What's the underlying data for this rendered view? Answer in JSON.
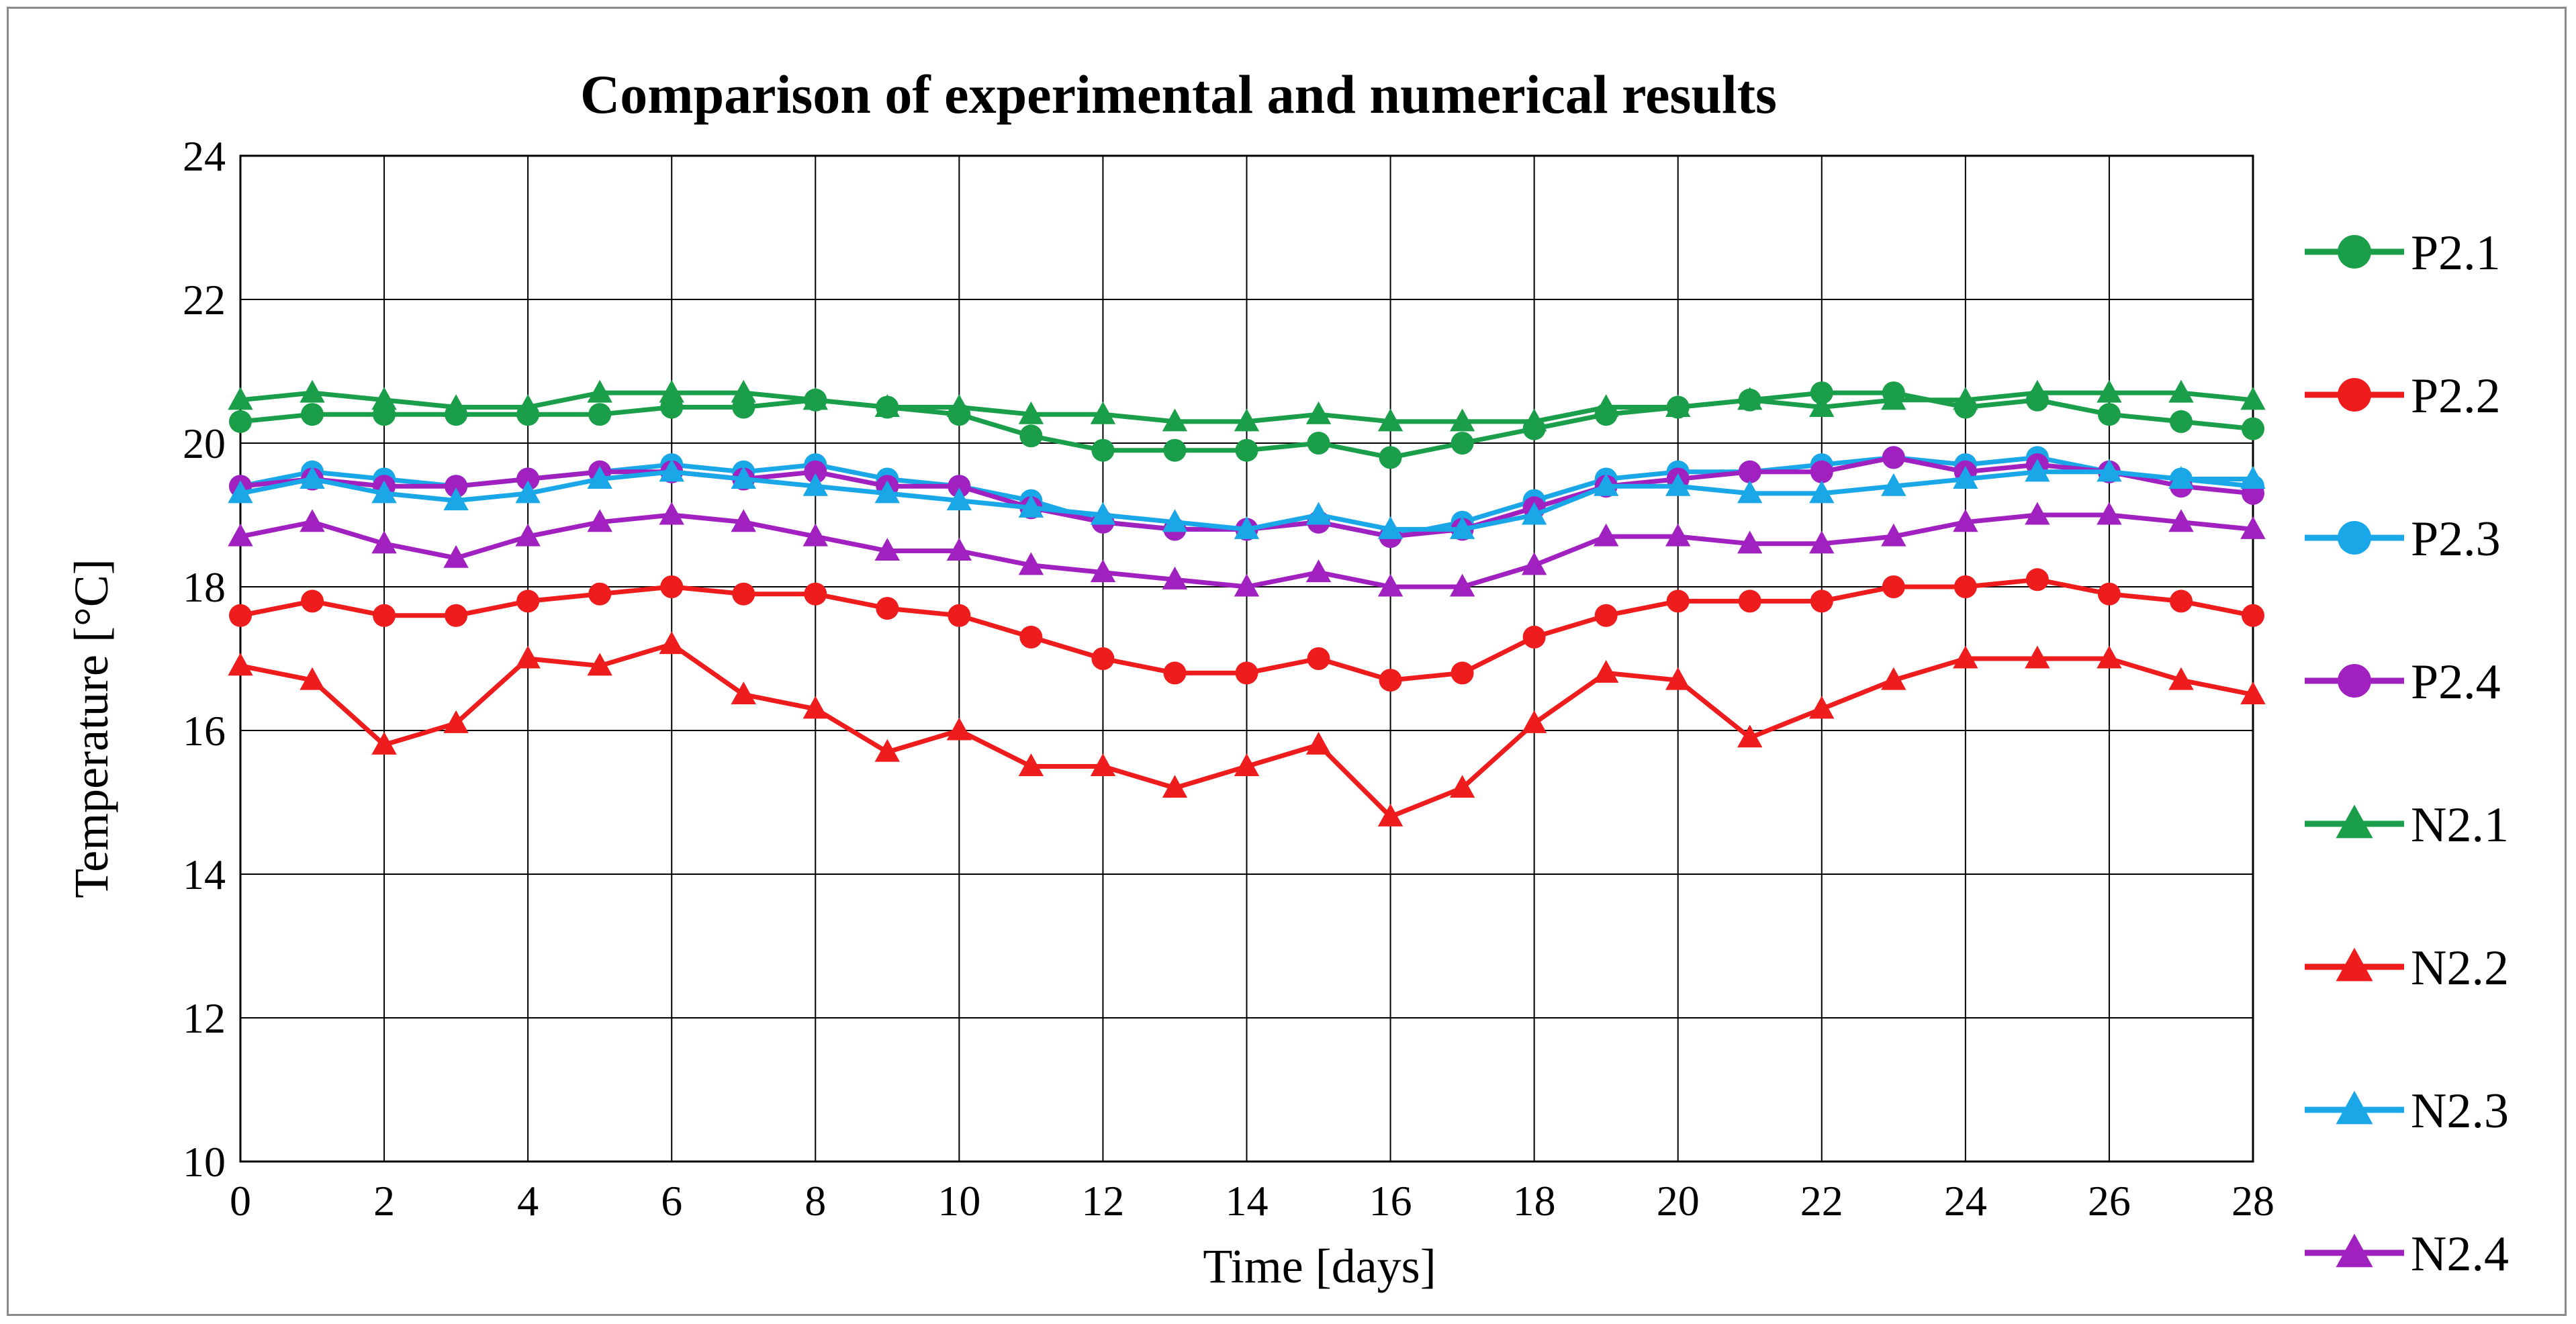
{
  "chart_data": {
    "type": "line",
    "title": "Comparison of experimental and numerical results",
    "xlabel": "Time [days]",
    "ylabel": "Temperature [°C]",
    "xlim": [
      0,
      28
    ],
    "ylim": [
      10,
      24
    ],
    "xticks": [
      0,
      2,
      4,
      6,
      8,
      10,
      12,
      14,
      16,
      18,
      20,
      22,
      24,
      26,
      28
    ],
    "yticks": [
      10,
      12,
      14,
      16,
      18,
      20,
      22,
      24
    ],
    "grid": true,
    "legend_position": "right",
    "series": [
      {
        "name": "P2.1",
        "color": "#1a9e4a",
        "marker": "circle",
        "x": [
          0,
          1,
          2,
          3,
          4,
          5,
          6,
          7,
          8,
          9,
          10,
          11,
          12,
          13,
          14,
          15,
          16,
          17,
          18,
          19,
          20,
          21,
          22,
          23,
          24,
          25,
          26,
          27,
          28
        ],
        "y": [
          20.3,
          20.4,
          20.4,
          20.4,
          20.4,
          20.4,
          20.5,
          20.5,
          20.6,
          20.5,
          20.4,
          20.1,
          19.9,
          19.9,
          19.9,
          20.0,
          19.8,
          20.0,
          20.2,
          20.4,
          20.5,
          20.6,
          20.7,
          20.7,
          20.5,
          20.6,
          20.4,
          20.3,
          20.2
        ]
      },
      {
        "name": "P2.2",
        "color": "#ee1c1c",
        "marker": "circle",
        "x": [
          0,
          1,
          2,
          3,
          4,
          5,
          6,
          7,
          8,
          9,
          10,
          11,
          12,
          13,
          14,
          15,
          16,
          17,
          18,
          19,
          20,
          21,
          22,
          23,
          24,
          25,
          26,
          27,
          28
        ],
        "y": [
          17.6,
          17.8,
          17.6,
          17.6,
          17.8,
          17.9,
          18.0,
          17.9,
          17.9,
          17.7,
          17.6,
          17.3,
          17.0,
          16.8,
          16.8,
          17.0,
          16.7,
          16.8,
          17.3,
          17.6,
          17.8,
          17.8,
          17.8,
          18.0,
          18.0,
          18.1,
          17.9,
          17.8,
          17.6
        ]
      },
      {
        "name": "P2.3",
        "color": "#1aa7e8",
        "marker": "circle",
        "x": [
          0,
          1,
          2,
          3,
          4,
          5,
          6,
          7,
          8,
          9,
          10,
          11,
          12,
          13,
          14,
          15,
          16,
          17,
          18,
          19,
          20,
          21,
          22,
          23,
          24,
          25,
          26,
          27,
          28
        ],
        "y": [
          19.4,
          19.6,
          19.5,
          19.4,
          19.5,
          19.6,
          19.7,
          19.6,
          19.7,
          19.5,
          19.4,
          19.2,
          18.9,
          18.8,
          18.8,
          18.9,
          18.7,
          18.9,
          19.2,
          19.5,
          19.6,
          19.6,
          19.7,
          19.8,
          19.7,
          19.8,
          19.6,
          19.5,
          19.4
        ]
      },
      {
        "name": "P2.4",
        "color": "#a020c0",
        "marker": "circle",
        "x": [
          0,
          1,
          2,
          3,
          4,
          5,
          6,
          7,
          8,
          9,
          10,
          11,
          12,
          13,
          14,
          15,
          16,
          17,
          18,
          19,
          20,
          21,
          22,
          23,
          24,
          25,
          26,
          27,
          28
        ],
        "y": [
          19.4,
          19.5,
          19.4,
          19.4,
          19.5,
          19.6,
          19.6,
          19.5,
          19.6,
          19.4,
          19.4,
          19.1,
          18.9,
          18.8,
          18.8,
          18.9,
          18.7,
          18.8,
          19.1,
          19.4,
          19.5,
          19.6,
          19.6,
          19.8,
          19.6,
          19.7,
          19.6,
          19.4,
          19.3
        ]
      },
      {
        "name": "N2.1",
        "color": "#1a9e4a",
        "marker": "triangle",
        "x": [
          0,
          1,
          2,
          3,
          4,
          5,
          6,
          7,
          8,
          9,
          10,
          11,
          12,
          13,
          14,
          15,
          16,
          17,
          18,
          19,
          20,
          21,
          22,
          23,
          24,
          25,
          26,
          27,
          28
        ],
        "y": [
          20.6,
          20.7,
          20.6,
          20.5,
          20.5,
          20.7,
          20.7,
          20.7,
          20.6,
          20.5,
          20.5,
          20.4,
          20.4,
          20.3,
          20.3,
          20.4,
          20.3,
          20.3,
          20.3,
          20.5,
          20.5,
          20.6,
          20.5,
          20.6,
          20.6,
          20.7,
          20.7,
          20.7,
          20.6
        ]
      },
      {
        "name": "N2.2",
        "color": "#ee1c1c",
        "marker": "triangle",
        "x": [
          0,
          1,
          2,
          3,
          4,
          5,
          6,
          7,
          8,
          9,
          10,
          11,
          12,
          13,
          14,
          15,
          16,
          17,
          18,
          19,
          20,
          21,
          22,
          23,
          24,
          25,
          26,
          27,
          28
        ],
        "y": [
          16.9,
          16.7,
          15.8,
          16.1,
          17.0,
          16.9,
          17.2,
          16.5,
          16.3,
          15.7,
          16.0,
          15.5,
          15.5,
          15.2,
          15.5,
          15.8,
          14.8,
          15.2,
          16.1,
          16.8,
          16.7,
          15.9,
          16.3,
          16.7,
          17.0,
          17.0,
          17.0,
          16.7,
          16.5
        ]
      },
      {
        "name": "N2.3",
        "color": "#1aa7e8",
        "marker": "triangle",
        "x": [
          0,
          1,
          2,
          3,
          4,
          5,
          6,
          7,
          8,
          9,
          10,
          11,
          12,
          13,
          14,
          15,
          16,
          17,
          18,
          19,
          20,
          21,
          22,
          23,
          24,
          25,
          26,
          27,
          28
        ],
        "y": [
          19.3,
          19.5,
          19.3,
          19.2,
          19.3,
          19.5,
          19.6,
          19.5,
          19.4,
          19.3,
          19.2,
          19.1,
          19.0,
          18.9,
          18.8,
          19.0,
          18.8,
          18.8,
          19.0,
          19.4,
          19.4,
          19.3,
          19.3,
          19.4,
          19.5,
          19.6,
          19.6,
          19.5,
          19.5
        ]
      },
      {
        "name": "N2.4",
        "color": "#a020c0",
        "marker": "triangle",
        "x": [
          0,
          1,
          2,
          3,
          4,
          5,
          6,
          7,
          8,
          9,
          10,
          11,
          12,
          13,
          14,
          15,
          16,
          17,
          18,
          19,
          20,
          21,
          22,
          23,
          24,
          25,
          26,
          27,
          28
        ],
        "y": [
          18.7,
          18.9,
          18.6,
          18.4,
          18.7,
          18.9,
          19.0,
          18.9,
          18.7,
          18.5,
          18.5,
          18.3,
          18.2,
          18.1,
          18.0,
          18.2,
          18.0,
          18.0,
          18.3,
          18.7,
          18.7,
          18.6,
          18.6,
          18.7,
          18.9,
          19.0,
          19.0,
          18.9,
          18.8
        ]
      }
    ]
  }
}
